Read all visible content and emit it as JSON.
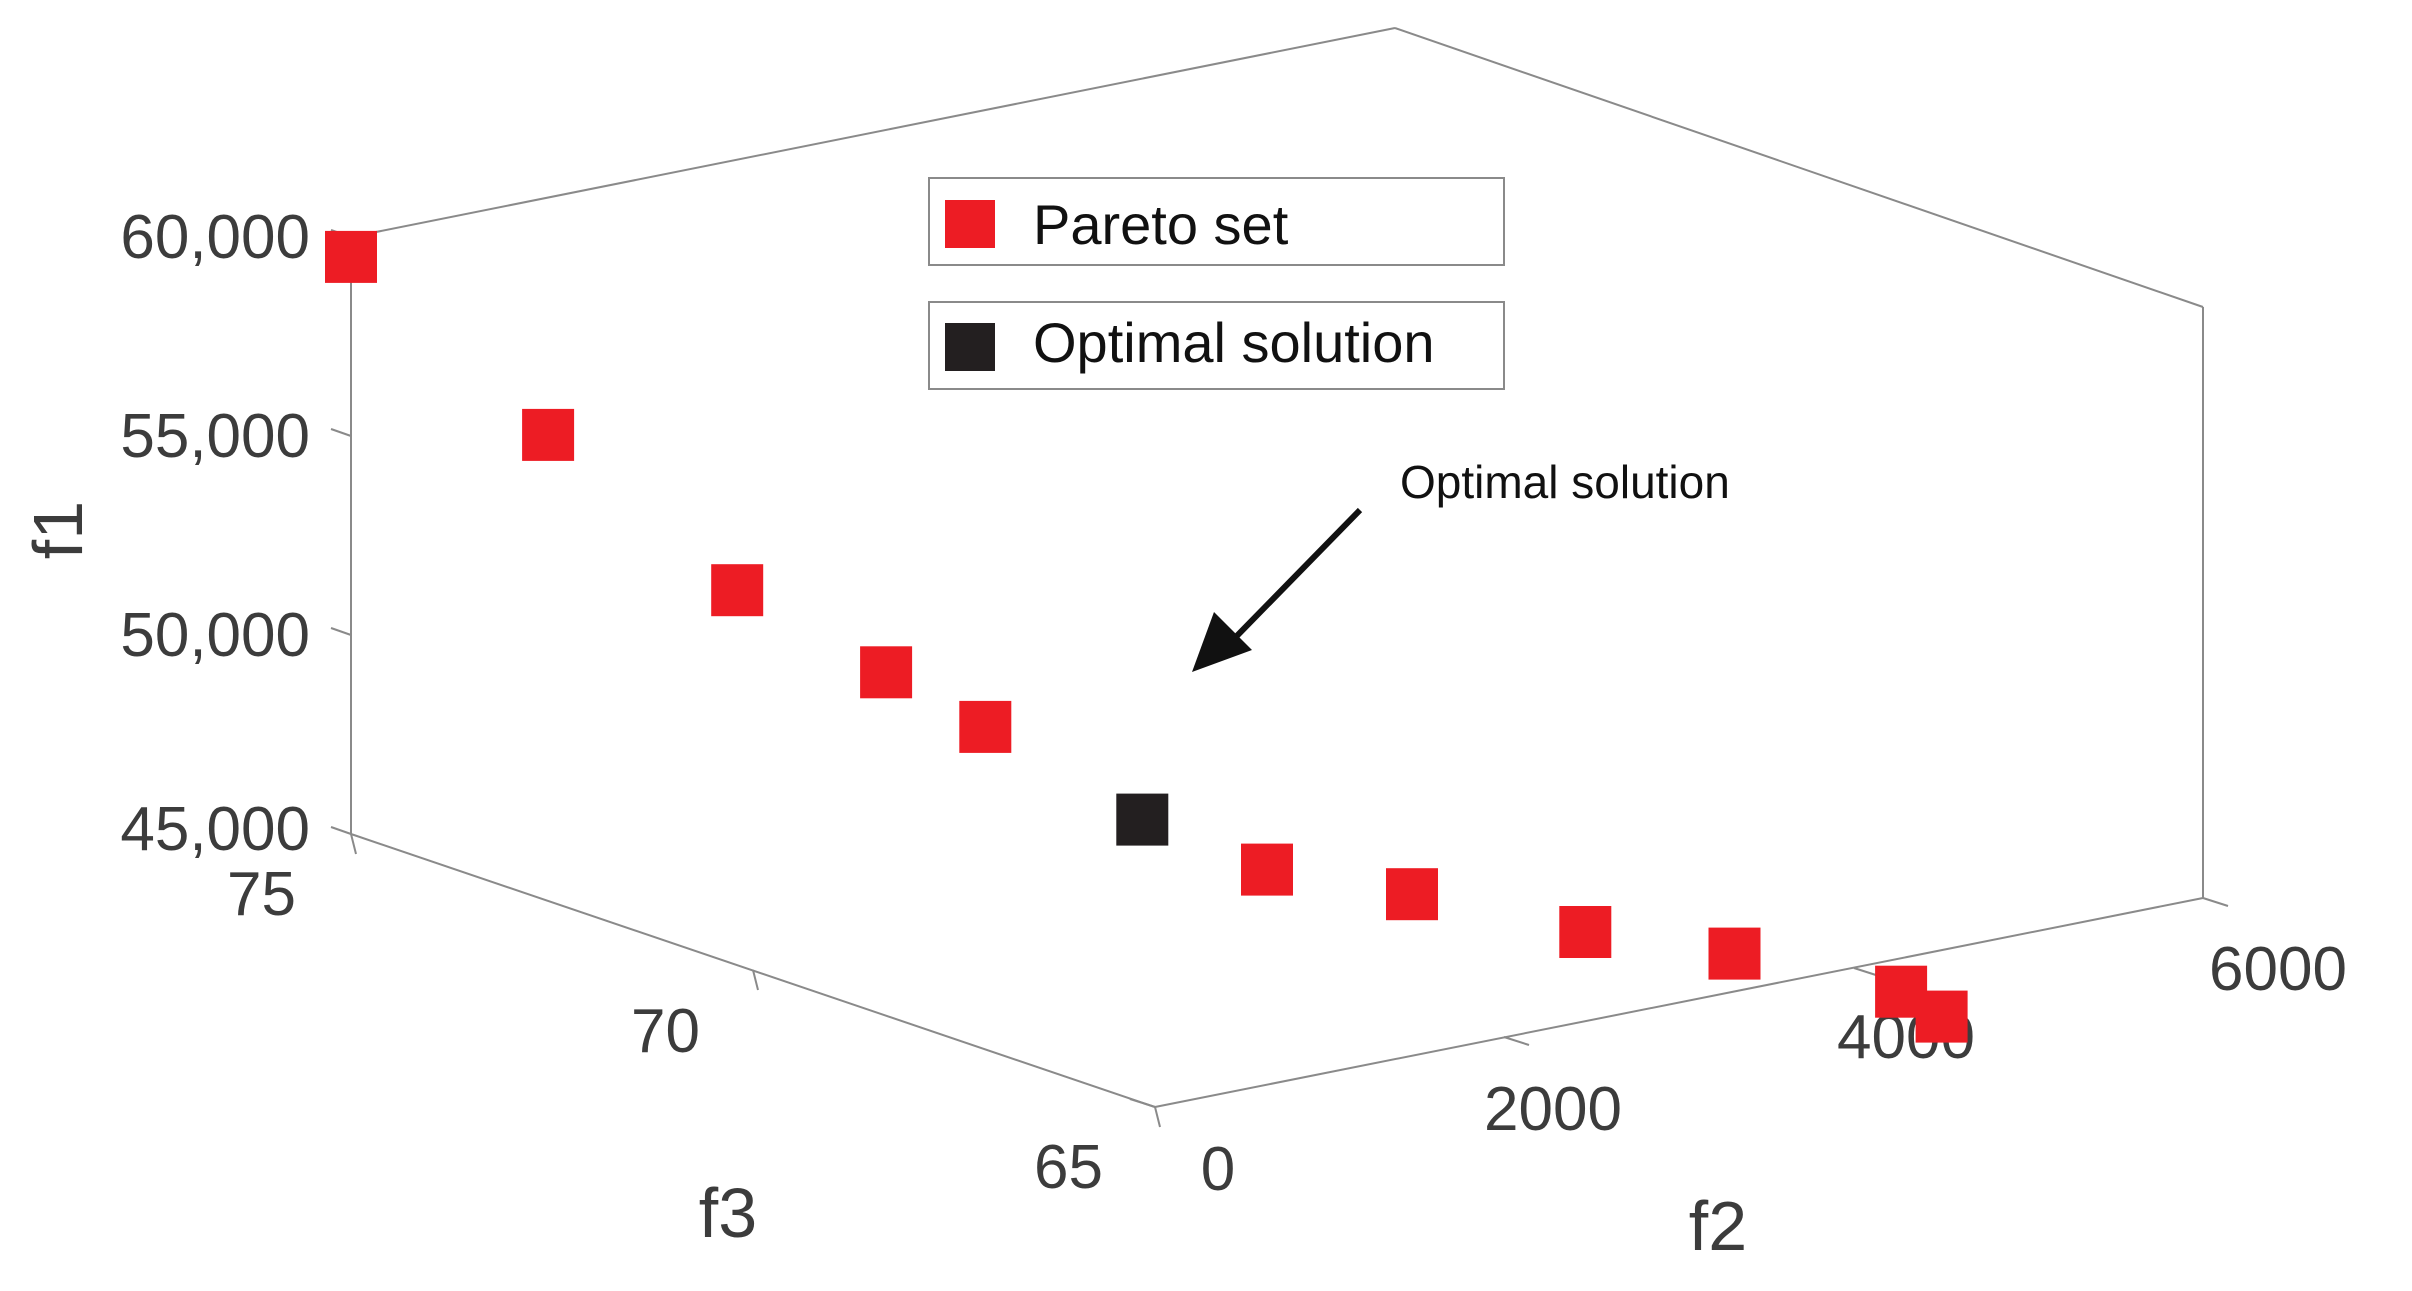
{
  "chart_data": {
    "type": "scatter",
    "title": "",
    "axes": {
      "x": {
        "label": "f2",
        "ticks": [
          "0",
          "2000",
          "4000",
          "6000"
        ],
        "range": [
          0,
          6000
        ]
      },
      "y": {
        "label": "f3",
        "ticks": [
          "65",
          "70",
          "75"
        ],
        "range": [
          65,
          75
        ]
      },
      "z": {
        "label": "f1",
        "ticks": [
          "45,000",
          "50,000",
          "55,000",
          "60,000"
        ],
        "range": [
          45000,
          60000
        ]
      }
    },
    "legend": {
      "placement": "top-center",
      "entries": [
        {
          "name": "Pareto set",
          "color": "#ed1c24"
        },
        {
          "name": "Optimal solution",
          "color": "#231f20"
        }
      ]
    },
    "annotation": {
      "text": "Optimal solution",
      "target": "optimal-solution"
    },
    "series": [
      {
        "name": "Pareto set",
        "color": "#ed1c24",
        "marker": "square",
        "points": [
          {
            "f2": 0,
            "f3": 75,
            "f1": 59500
          },
          {
            "f2": 300,
            "f3": 73.2,
            "f1": 56000
          },
          {
            "f2": 600,
            "f3": 71.5,
            "f1": 53000
          },
          {
            "f2": 900,
            "f3": 70.3,
            "f1": 51500
          },
          {
            "f2": 1100,
            "f3": 69.5,
            "f1": 50500
          },
          {
            "f2": 1700,
            "f3": 67.3,
            "f1": 47900
          },
          {
            "f2": 2300,
            "f3": 66.8,
            "f1": 47100
          },
          {
            "f2": 3200,
            "f3": 66.6,
            "f1": 45500
          },
          {
            "f2": 4100,
            "f3": 66.7,
            "f1": 44100
          },
          {
            "f2": 5100,
            "f3": 66.8,
            "f1": 42200
          },
          {
            "f2": 5700,
            "f3": 67.6,
            "f1": 40500
          }
        ]
      },
      {
        "name": "Optimal solution",
        "color": "#231f20",
        "marker": "square",
        "points": [
          {
            "f2": 1400,
            "f3": 68.2,
            "f1": 48800
          }
        ]
      }
    ],
    "grid": false
  }
}
